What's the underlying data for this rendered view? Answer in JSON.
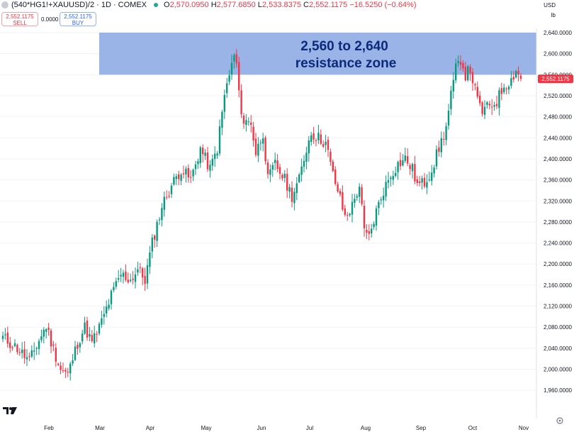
{
  "header": {
    "symbol": "(540*HG1!+XAUUSD)/2 · 1D · COMEX",
    "open_label": "O",
    "open": "2,570.0950",
    "high_label": "H",
    "high": "2,577.6850",
    "low_label": "L",
    "low": "2,533.8375",
    "close_label": "C",
    "close": "2,552.1175",
    "change": "−16.5250 (−0.64%)",
    "sell_price": "2,552.1175",
    "sell_label": "SELL",
    "spread": "0.0000",
    "buy_price": "2,552.1175",
    "buy_label": "BUY",
    "currency": "USD",
    "unit": "lb"
  },
  "chart_data": {
    "type": "candlestick",
    "ylim": [
      1940,
      2640
    ],
    "y_ticks": [
      "2,640.0000",
      "2,600.0000",
      "2,560.0000",
      "2,520.0000",
      "2,480.0000",
      "2,440.0000",
      "2,400.0000",
      "2,360.0000",
      "2,320.0000",
      "2,280.0000",
      "2,240.0000",
      "2,200.0000",
      "2,160.0000",
      "2,120.0000",
      "2,080.0000",
      "2,040.0000",
      "2,000.0000",
      "1,960.0000"
    ],
    "x_labels": [
      "Feb",
      "Mar",
      "Apr",
      "May",
      "Jun",
      "Jul",
      "Aug",
      "Sep",
      "Oct",
      "Nov"
    ],
    "last_price": "2,552.1175",
    "annotation": {
      "type": "zone",
      "y_from": 2560,
      "y_to": 2640,
      "line1": "2,560 to 2,640",
      "line2": "resistance zone",
      "color": "#7e9fe0"
    },
    "path": [
      [
        0,
        2060
      ],
      [
        6,
        2040
      ],
      [
        11,
        2015
      ],
      [
        15,
        2055
      ],
      [
        18,
        2082
      ],
      [
        21,
        2038
      ],
      [
        24,
        2000
      ],
      [
        27,
        1990
      ],
      [
        31,
        2050
      ],
      [
        34,
        2080
      ],
      [
        37,
        2050
      ],
      [
        41,
        2090
      ],
      [
        45,
        2140
      ],
      [
        49,
        2180
      ],
      [
        53,
        2170
      ],
      [
        56,
        2190
      ],
      [
        59,
        2170
      ],
      [
        62,
        2240
      ],
      [
        66,
        2310
      ],
      [
        70,
        2350
      ],
      [
        74,
        2380
      ],
      [
        78,
        2360
      ],
      [
        82,
        2420
      ],
      [
        86,
        2380
      ],
      [
        89,
        2420
      ],
      [
        92,
        2520
      ],
      [
        94,
        2560
      ],
      [
        96,
        2595
      ],
      [
        97,
        2580
      ],
      [
        98,
        2520
      ],
      [
        100,
        2470
      ],
      [
        103,
        2470
      ],
      [
        105,
        2410
      ],
      [
        108,
        2450
      ],
      [
        110,
        2360
      ],
      [
        113,
        2390
      ],
      [
        117,
        2360
      ],
      [
        120,
        2330
      ],
      [
        123,
        2360
      ],
      [
        126,
        2420
      ],
      [
        128,
        2450
      ],
      [
        131,
        2440
      ],
      [
        134,
        2430
      ],
      [
        137,
        2370
      ],
      [
        139,
        2340
      ],
      [
        142,
        2290
      ],
      [
        145,
        2310
      ],
      [
        148,
        2350
      ],
      [
        150,
        2260
      ],
      [
        152,
        2250
      ],
      [
        155,
        2300
      ],
      [
        158,
        2340
      ],
      [
        161,
        2370
      ],
      [
        164,
        2390
      ],
      [
        167,
        2400
      ],
      [
        170,
        2380
      ],
      [
        172,
        2350
      ],
      [
        175,
        2355
      ],
      [
        178,
        2380
      ],
      [
        181,
        2420
      ],
      [
        184,
        2460
      ],
      [
        186,
        2520
      ],
      [
        188,
        2570
      ],
      [
        190,
        2590
      ],
      [
        192,
        2560
      ],
      [
        194,
        2570
      ],
      [
        197,
        2510
      ],
      [
        199,
        2490
      ],
      [
        202,
        2500
      ],
      [
        205,
        2510
      ],
      [
        208,
        2540
      ],
      [
        211,
        2550
      ],
      [
        213,
        2570
      ],
      [
        215,
        2552
      ]
    ]
  }
}
